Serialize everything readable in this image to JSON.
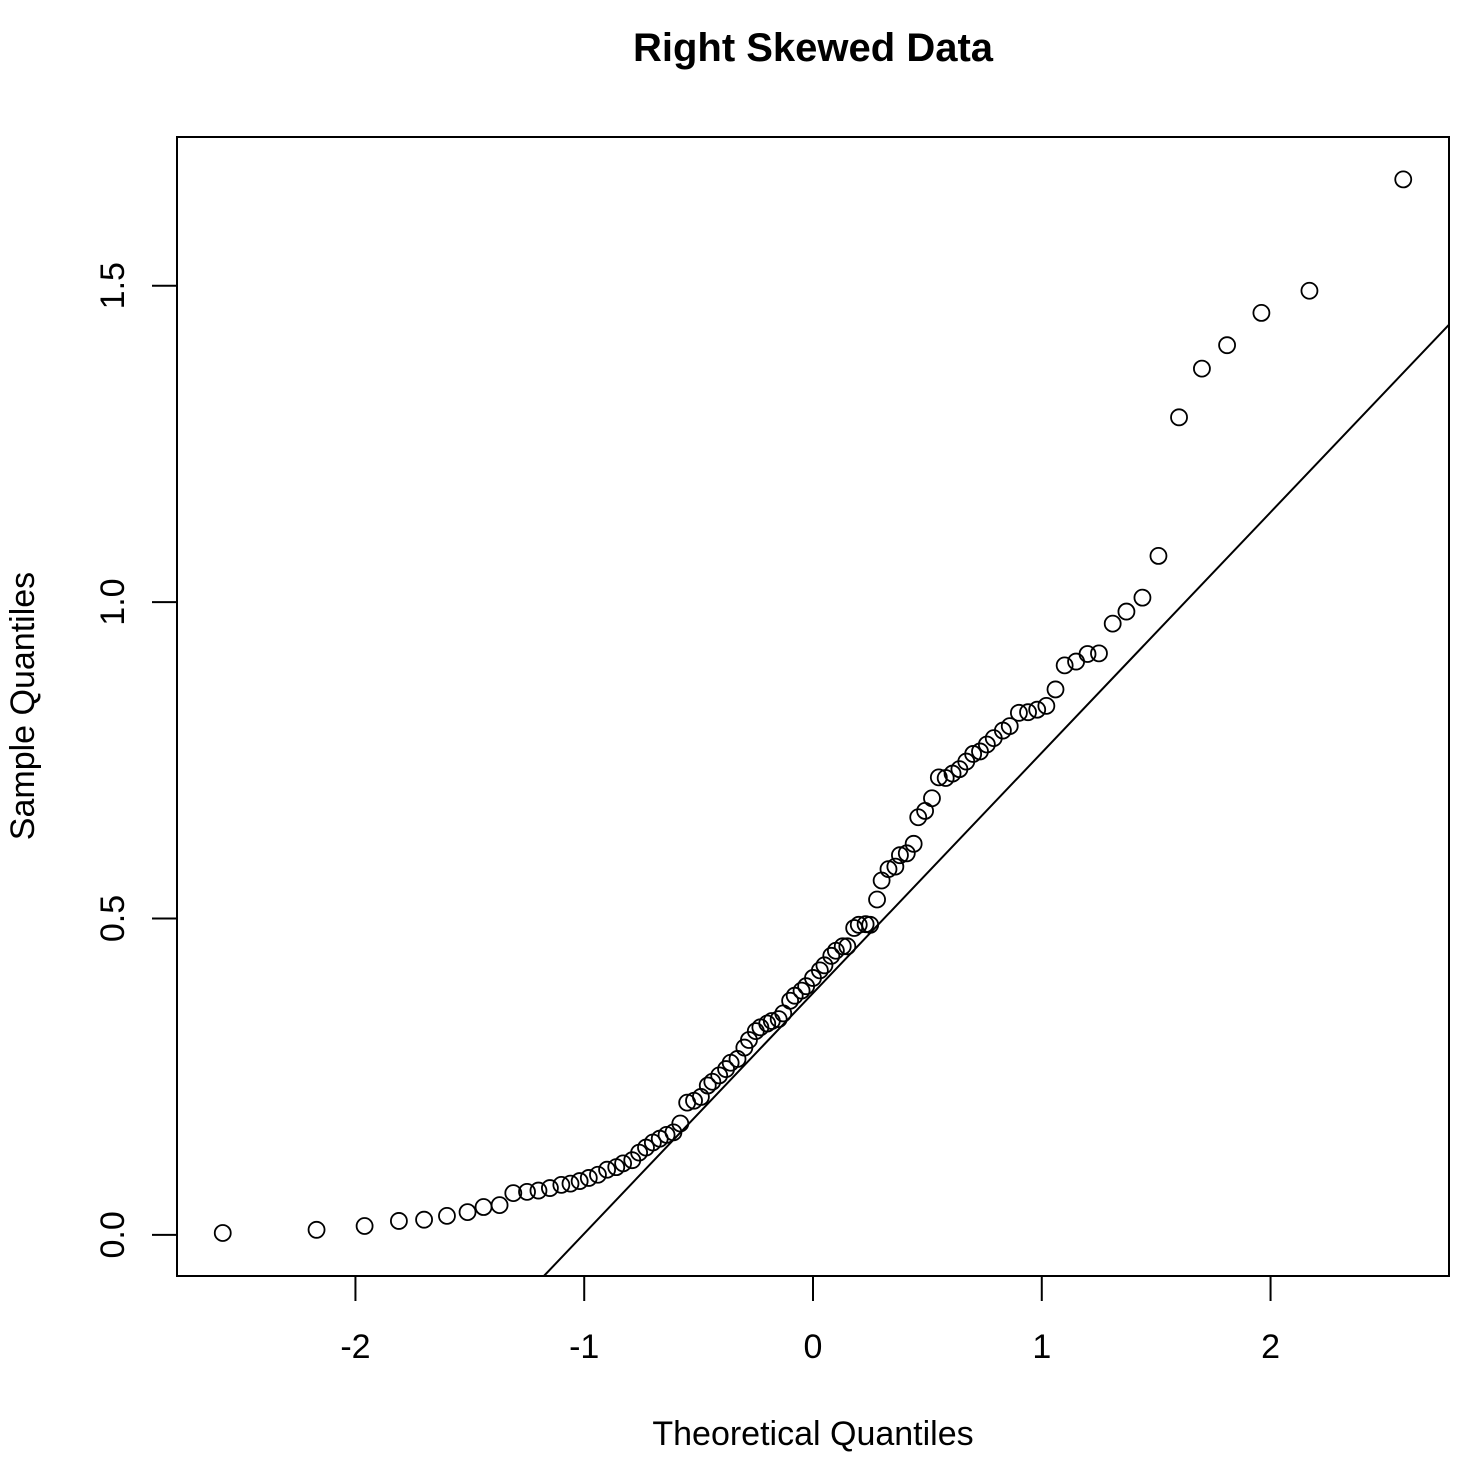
{
  "chart_data": {
    "type": "scatter",
    "title": "Right Skewed Data",
    "xlabel": "Theoretical Quantiles",
    "ylabel": "Sample Quantiles",
    "xlim": [
      -2.78,
      2.78
    ],
    "ylim": [
      -0.065,
      1.735
    ],
    "x_ticks": [
      {
        "value": -2,
        "label": "-2"
      },
      {
        "value": -1,
        "label": "-1"
      },
      {
        "value": 0,
        "label": "0"
      },
      {
        "value": 1,
        "label": "1"
      },
      {
        "value": 2,
        "label": "2"
      }
    ],
    "y_ticks": [
      {
        "value": 0,
        "label": "0.0"
      },
      {
        "value": 0.5,
        "label": "0.5"
      },
      {
        "value": 1,
        "label": "1.0"
      },
      {
        "value": 1.5,
        "label": "1.5"
      }
    ],
    "grid": false,
    "legend": "none",
    "reference_line": {
      "slope": 0.38,
      "intercept": 0.382
    },
    "points": {
      "x": [
        -2.58,
        -2.17,
        -1.96,
        -1.81,
        -1.7,
        -1.6,
        -1.51,
        -1.44,
        -1.37,
        -1.31,
        -1.25,
        -1.2,
        -1.15,
        -1.1,
        -1.06,
        -1.02,
        -0.98,
        -0.94,
        -0.9,
        -0.86,
        -0.83,
        -0.79,
        -0.76,
        -0.73,
        -0.7,
        -0.67,
        -0.64,
        -0.61,
        -0.58,
        -0.55,
        -0.52,
        -0.49,
        -0.46,
        -0.44,
        -0.41,
        -0.38,
        -0.36,
        -0.33,
        -0.3,
        -0.28,
        -0.25,
        -0.23,
        -0.2,
        -0.18,
        -0.15,
        -0.13,
        -0.1,
        -0.08,
        -0.05,
        -0.03,
        0.0,
        0.03,
        0.05,
        0.08,
        0.1,
        0.13,
        0.15,
        0.18,
        0.2,
        0.23,
        0.25,
        0.28,
        0.3,
        0.33,
        0.36,
        0.38,
        0.41,
        0.44,
        0.46,
        0.49,
        0.52,
        0.55,
        0.58,
        0.61,
        0.64,
        0.67,
        0.7,
        0.73,
        0.76,
        0.79,
        0.83,
        0.86,
        0.9,
        0.94,
        0.98,
        1.02,
        1.06,
        1.1,
        1.15,
        1.2,
        1.25,
        1.31,
        1.37,
        1.44,
        1.51,
        1.6,
        1.7,
        1.81,
        1.96,
        2.17,
        2.58
      ],
      "y": [
        0.003,
        0.008,
        0.014,
        0.022,
        0.024,
        0.03,
        0.036,
        0.044,
        0.047,
        0.066,
        0.068,
        0.07,
        0.074,
        0.079,
        0.081,
        0.085,
        0.09,
        0.095,
        0.103,
        0.107,
        0.113,
        0.118,
        0.13,
        0.138,
        0.146,
        0.152,
        0.158,
        0.162,
        0.176,
        0.209,
        0.212,
        0.218,
        0.236,
        0.242,
        0.252,
        0.262,
        0.272,
        0.278,
        0.296,
        0.308,
        0.322,
        0.328,
        0.334,
        0.338,
        0.341,
        0.35,
        0.37,
        0.378,
        0.386,
        0.393,
        0.406,
        0.418,
        0.426,
        0.441,
        0.449,
        0.456,
        0.456,
        0.485,
        0.49,
        0.491,
        0.49,
        0.53,
        0.56,
        0.578,
        0.582,
        0.6,
        0.603,
        0.618,
        0.66,
        0.67,
        0.69,
        0.723,
        0.722,
        0.729,
        0.736,
        0.748,
        0.76,
        0.764,
        0.775,
        0.785,
        0.797,
        0.804,
        0.825,
        0.826,
        0.83,
        0.836,
        0.862,
        0.9,
        0.906,
        0.918,
        0.919,
        0.966,
        0.985,
        1.007,
        1.073,
        1.292,
        1.369,
        1.406,
        1.457,
        1.492,
        1.668
      ]
    }
  }
}
